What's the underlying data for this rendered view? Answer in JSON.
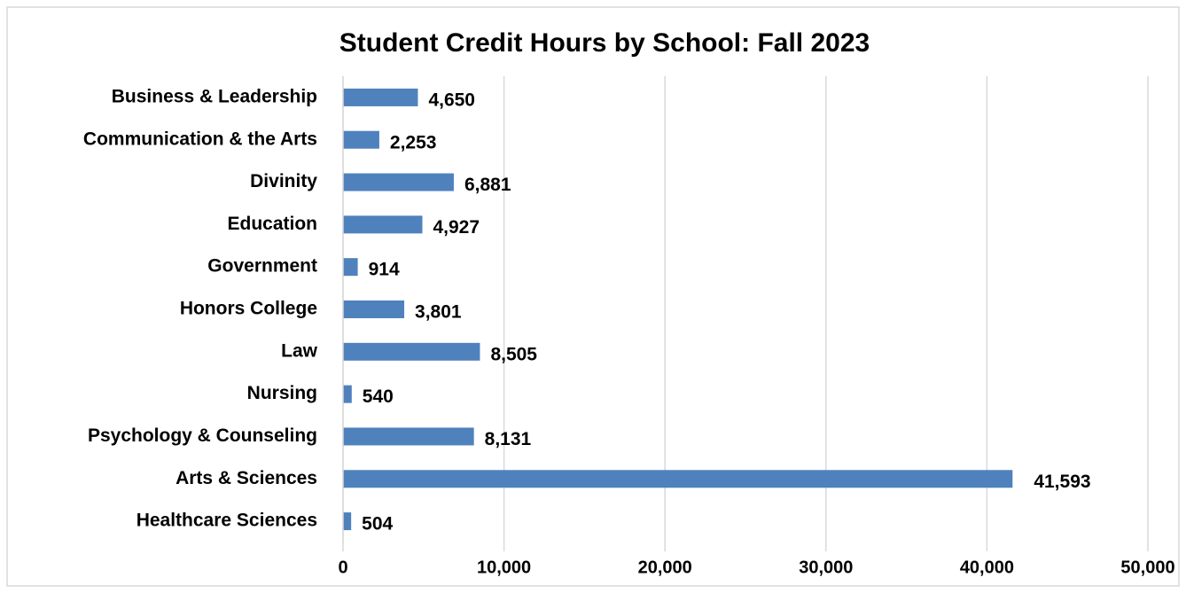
{
  "chart_data": {
    "type": "bar",
    "orientation": "horizontal",
    "title": "Student Credit Hours by School: Fall 2023",
    "categories": [
      "Business & Leadership",
      "Communication & the Arts",
      "Divinity",
      "Education",
      "Government",
      "Honors College",
      "Law",
      "Nursing",
      "Psychology & Counseling",
      "Arts & Sciences",
      "Healthcare Sciences"
    ],
    "values": [
      4650,
      2253,
      6881,
      4927,
      914,
      3801,
      8505,
      540,
      8131,
      41593,
      504
    ],
    "value_labels": [
      "4,650",
      "2,253",
      "6,881",
      "4,927",
      "914",
      "3,801",
      "8,505",
      "540",
      "8,131",
      "41,593",
      "504"
    ],
    "color": "#4f81bd",
    "xlim": [
      0,
      50000
    ],
    "xticks": [
      0,
      {
        "value": 10000,
        "label": "10,000"
      },
      {
        "value": 20000,
        "label": "20,000"
      },
      {
        "value": 30000,
        "label": "30,000"
      },
      {
        "value": 40000,
        "label": "40,000"
      },
      {
        "value": 50000,
        "label": "50,000"
      }
    ],
    "grid": true
  }
}
